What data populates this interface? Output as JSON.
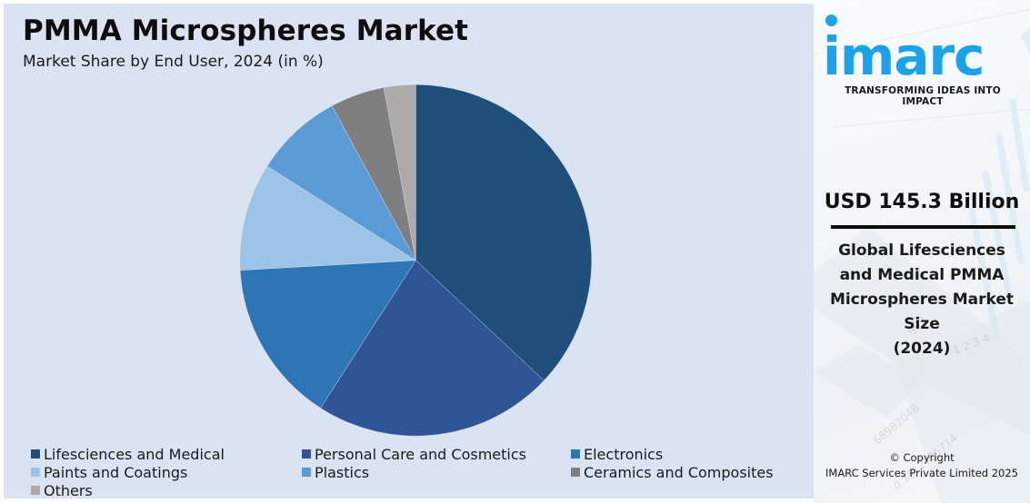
{
  "header": {
    "title": "PMMA Microspheres Market",
    "subtitle": "Market Share by End User, 2024 (in %)"
  },
  "chart_data": {
    "type": "pie",
    "title": "PMMA Microspheres Market",
    "subtitle": "Market Share by End User, 2024 (in %)",
    "categories": [
      "Lifesciences and Medical",
      "Personal Care and Cosmetics",
      "Electronics",
      "Paints and Coatings",
      "Plastics",
      "Ceramics and Composites",
      "Others"
    ],
    "values": [
      37.0,
      22.1,
      15.0,
      9.9,
      8.1,
      5.0,
      2.9
    ],
    "colors": [
      "#1f4e79",
      "#2f5597",
      "#2e75b6",
      "#9dc3e6",
      "#5b9bd5",
      "#7f7f7f",
      "#aeaaaa"
    ],
    "start_angle_deg": 0,
    "direction": "clockwise",
    "legend_position": "bottom",
    "data_labels": false
  },
  "legend": {
    "items": [
      {
        "label": "Lifesciences and Medical",
        "color": "#1f4e79"
      },
      {
        "label": "Personal Care and Cosmetics",
        "color": "#2f5597"
      },
      {
        "label": "Electronics",
        "color": "#2e75b6"
      },
      {
        "label": "Paints and Coatings",
        "color": "#9dc3e6"
      },
      {
        "label": "Plastics",
        "color": "#5b9bd5"
      },
      {
        "label": "Ceramics and Composites",
        "color": "#7f7f7f"
      },
      {
        "label": "Others",
        "color": "#aeaaaa"
      }
    ]
  },
  "sidebar": {
    "logo_text": "imarc",
    "tagline": "TRANSFORMING IDEAS INTO IMPACT",
    "market_value": "USD 145.3 Billion",
    "market_description_lines": [
      "Global Lifesciences",
      "and Medical PMMA",
      "Microspheres Market",
      "Size",
      "(2024)"
    ],
    "copyright_line1": "© Copyright",
    "copyright_line2": "IMARC Services Private Limited 2025",
    "brand_color": "#1aa3e8"
  }
}
